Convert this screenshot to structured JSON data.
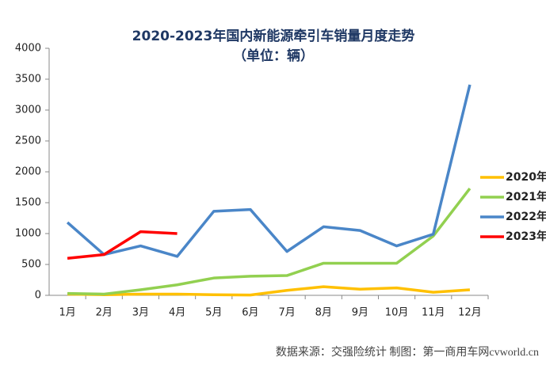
{
  "chart_data": {
    "type": "line",
    "title": "2020-2023年国内新能源牵引车销量月度走势",
    "subtitle": "（单位：辆）",
    "source": "数据来源：交强险统计   制图：第一商用车网cvworld.cn",
    "categories": [
      "1月",
      "2月",
      "3月",
      "4月",
      "5月",
      "6月",
      "7月",
      "8月",
      "9月",
      "10月",
      "11月",
      "12月"
    ],
    "series": [
      {
        "name": "2020年",
        "color": "#ffc000",
        "values": [
          20,
          10,
          20,
          20,
          10,
          5,
          80,
          140,
          100,
          120,
          50,
          90
        ]
      },
      {
        "name": "2021年",
        "color": "#92d050",
        "values": [
          30,
          20,
          90,
          170,
          280,
          310,
          320,
          520,
          520,
          520,
          960,
          1730
        ]
      },
      {
        "name": "2022年",
        "color": "#4a86c8",
        "values": [
          1180,
          660,
          800,
          630,
          1360,
          1390,
          710,
          1110,
          1050,
          800,
          990,
          3410
        ]
      },
      {
        "name": "2023年",
        "color": "#ff0000",
        "values": [
          600,
          660,
          1030,
          1000,
          null,
          null,
          null,
          null,
          null,
          null,
          null,
          null
        ]
      }
    ],
    "ylim": [
      0,
      4000
    ],
    "yticks": [
      0,
      500,
      1000,
      1500,
      2000,
      2500,
      3000,
      3500,
      4000
    ],
    "grid": false,
    "legend": "right"
  }
}
